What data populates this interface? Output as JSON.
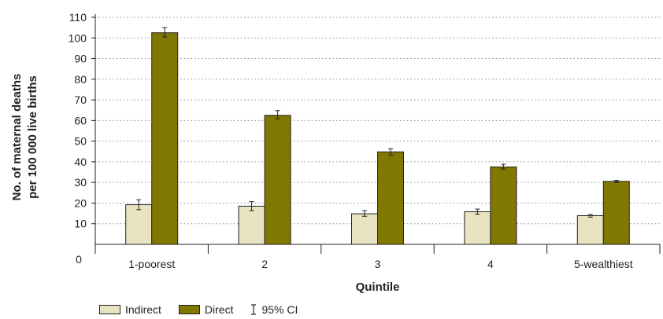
{
  "chart_data": {
    "type": "bar",
    "title": "",
    "xlabel": "Quintile",
    "ylabel_lines": [
      "No. of maternal deaths",
      "per 100 000 live births"
    ],
    "categories": [
      "1-poorest",
      "2",
      "3",
      "4",
      "5-wealthiest"
    ],
    "series": [
      {
        "name": "Indirect",
        "color": "#e8e3c0",
        "values": [
          19.2,
          18.5,
          14.8,
          15.8,
          13.9
        ],
        "ci_low": [
          16.8,
          16.3,
          13.6,
          14.6,
          13.2
        ],
        "ci_high": [
          21.6,
          20.7,
          16.3,
          17.1,
          14.5
        ]
      },
      {
        "name": "Direct",
        "color": "#807800",
        "values": [
          102.5,
          62.5,
          44.8,
          37.5,
          30.5
        ],
        "ci_low": [
          100.5,
          60.8,
          43.3,
          36.5,
          30.0
        ],
        "ci_high": [
          105.0,
          64.8,
          46.3,
          38.8,
          31.0
        ]
      }
    ],
    "ci_label": "95% CI",
    "yticks": [
      10,
      20,
      30,
      40,
      50,
      60,
      70,
      80,
      90,
      100,
      110
    ],
    "ymin_label": "0",
    "ylim": [
      0,
      110
    ],
    "grid": "horizontal dotted",
    "legend_position": "bottom-left"
  }
}
